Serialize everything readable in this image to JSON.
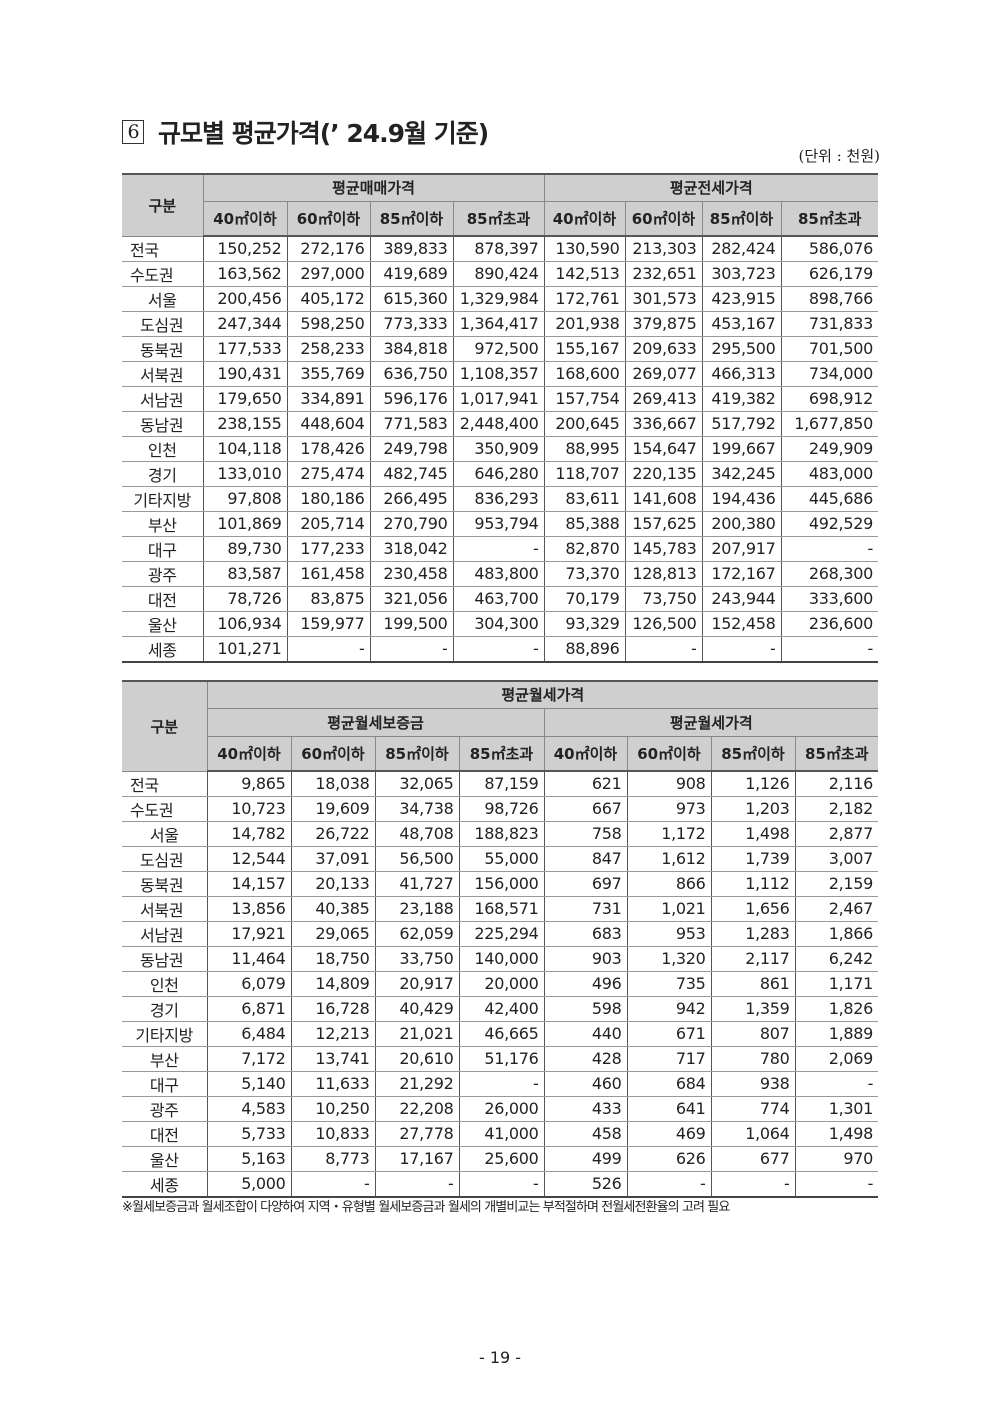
{
  "section_number": "6",
  "title": "규모별 평균가격(’ 24.9월 기준)",
  "unit": "(단위 : 천원)",
  "size_headers": [
    "40㎡이하",
    "60㎡이하",
    "85㎡이하",
    "85㎡초과"
  ],
  "table1": {
    "category_header": "구분",
    "group_headers": [
      "평균매매가격",
      "평균전세가격"
    ],
    "rows": [
      {
        "label": "전국",
        "align": "l",
        "values": [
          "150,252",
          "272,176",
          "389,833",
          "878,397",
          "130,590",
          "213,303",
          "282,424",
          "586,076"
        ]
      },
      {
        "label": "수도권",
        "align": "l",
        "values": [
          "163,562",
          "297,000",
          "419,689",
          "890,424",
          "142,513",
          "232,651",
          "303,723",
          "626,179"
        ]
      },
      {
        "label": "서울",
        "align": "c",
        "values": [
          "200,456",
          "405,172",
          "615,360",
          "1,329,984",
          "172,761",
          "301,573",
          "423,915",
          "898,766"
        ]
      },
      {
        "label": "도심권",
        "align": "r",
        "values": [
          "247,344",
          "598,250",
          "773,333",
          "1,364,417",
          "201,938",
          "379,875",
          "453,167",
          "731,833"
        ]
      },
      {
        "label": "동북권",
        "align": "r",
        "values": [
          "177,533",
          "258,233",
          "384,818",
          "972,500",
          "155,167",
          "209,633",
          "295,500",
          "701,500"
        ]
      },
      {
        "label": "서북권",
        "align": "r",
        "values": [
          "190,431",
          "355,769",
          "636,750",
          "1,108,357",
          "168,600",
          "269,077",
          "466,313",
          "734,000"
        ]
      },
      {
        "label": "서남권",
        "align": "r",
        "values": [
          "179,650",
          "334,891",
          "596,176",
          "1,017,941",
          "157,754",
          "269,413",
          "419,382",
          "698,912"
        ]
      },
      {
        "label": "동남권",
        "align": "r",
        "values": [
          "238,155",
          "448,604",
          "771,583",
          "2,448,400",
          "200,645",
          "336,667",
          "517,792",
          "1,677,850"
        ]
      },
      {
        "label": "인천",
        "align": "c",
        "values": [
          "104,118",
          "178,426",
          "249,798",
          "350,909",
          "88,995",
          "154,647",
          "199,667",
          "249,909"
        ]
      },
      {
        "label": "경기",
        "align": "c",
        "values": [
          "133,010",
          "275,474",
          "482,745",
          "646,280",
          "118,707",
          "220,135",
          "342,245",
          "483,000"
        ]
      },
      {
        "label": "기타지방",
        "align": "c",
        "values": [
          "97,808",
          "180,186",
          "266,495",
          "836,293",
          "83,611",
          "141,608",
          "194,436",
          "445,686"
        ]
      },
      {
        "label": "부산",
        "align": "c",
        "values": [
          "101,869",
          "205,714",
          "270,790",
          "953,794",
          "85,388",
          "157,625",
          "200,380",
          "492,529"
        ]
      },
      {
        "label": "대구",
        "align": "c",
        "values": [
          "89,730",
          "177,233",
          "318,042",
          "-",
          "82,870",
          "145,783",
          "207,917",
          "-"
        ]
      },
      {
        "label": "광주",
        "align": "c",
        "values": [
          "83,587",
          "161,458",
          "230,458",
          "483,800",
          "73,370",
          "128,813",
          "172,167",
          "268,300"
        ]
      },
      {
        "label": "대전",
        "align": "c",
        "values": [
          "78,726",
          "83,875",
          "321,056",
          "463,700",
          "70,179",
          "73,750",
          "243,944",
          "333,600"
        ]
      },
      {
        "label": "울산",
        "align": "c",
        "values": [
          "106,934",
          "159,977",
          "199,500",
          "304,300",
          "93,329",
          "126,500",
          "152,458",
          "236,600"
        ]
      },
      {
        "label": "세종",
        "align": "c",
        "values": [
          "101,271",
          "-",
          "-",
          "-",
          "88,896",
          "-",
          "-",
          "-"
        ]
      }
    ]
  },
  "table2": {
    "category_header": "구분",
    "top_header": "평균월세가격",
    "group_headers": [
      "평균월세보증금",
      "평균월세가격"
    ],
    "rows": [
      {
        "label": "전국",
        "align": "l",
        "values": [
          "9,865",
          "18,038",
          "32,065",
          "87,159",
          "621",
          "908",
          "1,126",
          "2,116"
        ]
      },
      {
        "label": "수도권",
        "align": "l",
        "values": [
          "10,723",
          "19,609",
          "34,738",
          "98,726",
          "667",
          "973",
          "1,203",
          "2,182"
        ]
      },
      {
        "label": "서울",
        "align": "c",
        "values": [
          "14,782",
          "26,722",
          "48,708",
          "188,823",
          "758",
          "1,172",
          "1,498",
          "2,877"
        ]
      },
      {
        "label": "도심권",
        "align": "r",
        "values": [
          "12,544",
          "37,091",
          "56,500",
          "55,000",
          "847",
          "1,612",
          "1,739",
          "3,007"
        ]
      },
      {
        "label": "동북권",
        "align": "r",
        "values": [
          "14,157",
          "20,133",
          "41,727",
          "156,000",
          "697",
          "866",
          "1,112",
          "2,159"
        ]
      },
      {
        "label": "서북권",
        "align": "r",
        "values": [
          "13,856",
          "40,385",
          "23,188",
          "168,571",
          "731",
          "1,021",
          "1,656",
          "2,467"
        ]
      },
      {
        "label": "서남권",
        "align": "r",
        "values": [
          "17,921",
          "29,065",
          "62,059",
          "225,294",
          "683",
          "953",
          "1,283",
          "1,866"
        ]
      },
      {
        "label": "동남권",
        "align": "r",
        "values": [
          "11,464",
          "18,750",
          "33,750",
          "140,000",
          "903",
          "1,320",
          "2,117",
          "6,242"
        ]
      },
      {
        "label": "인천",
        "align": "c",
        "values": [
          "6,079",
          "14,809",
          "20,917",
          "20,000",
          "496",
          "735",
          "861",
          "1,171"
        ]
      },
      {
        "label": "경기",
        "align": "c",
        "values": [
          "6,871",
          "16,728",
          "40,429",
          "42,400",
          "598",
          "942",
          "1,359",
          "1,826"
        ]
      },
      {
        "label": "기타지방",
        "align": "c",
        "values": [
          "6,484",
          "12,213",
          "21,021",
          "46,665",
          "440",
          "671",
          "807",
          "1,889"
        ]
      },
      {
        "label": "부산",
        "align": "c",
        "values": [
          "7,172",
          "13,741",
          "20,610",
          "51,176",
          "428",
          "717",
          "780",
          "2,069"
        ]
      },
      {
        "label": "대구",
        "align": "c",
        "values": [
          "5,140",
          "11,633",
          "21,292",
          "-",
          "460",
          "684",
          "938",
          "-"
        ]
      },
      {
        "label": "광주",
        "align": "c",
        "values": [
          "4,583",
          "10,250",
          "22,208",
          "26,000",
          "433",
          "641",
          "774",
          "1,301"
        ]
      },
      {
        "label": "대전",
        "align": "c",
        "values": [
          "5,733",
          "10,833",
          "27,778",
          "41,000",
          "458",
          "469",
          "1,064",
          "1,498"
        ]
      },
      {
        "label": "울산",
        "align": "c",
        "values": [
          "5,163",
          "8,773",
          "17,167",
          "25,600",
          "499",
          "626",
          "677",
          "970"
        ]
      },
      {
        "label": "세종",
        "align": "c",
        "values": [
          "5,000",
          "-",
          "-",
          "-",
          "526",
          "-",
          "-",
          "-"
        ]
      }
    ]
  },
  "note": "※월세보증금과 월세조합이 다양하여 지역・유형별 월세보증금과 월세의 개별비교는 부적절하며 전월세전환율의 고려 필요",
  "page_number": "- 19 -"
}
